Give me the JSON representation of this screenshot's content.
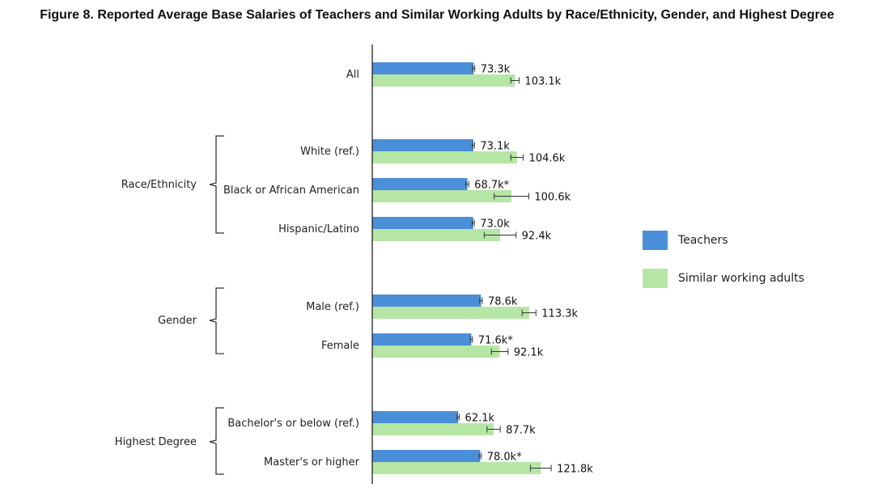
{
  "title": "Figure 8. Reported Average Base Salaries of Teachers and Similar Working Adults by Race/Ethnicity, Gender, and Highest Degree",
  "chart_data": {
    "type": "bar",
    "orientation": "horizontal",
    "title": "Figure 8. Reported Average Base Salaries of Teachers and Similar Working Adults by Race/Ethnicity, Gender, and Highest Degree",
    "xlabel": "",
    "ylabel": "",
    "xlim": [
      0,
      125
    ],
    "grid": false,
    "legend_position": "right",
    "categories": [
      "All",
      "White (ref.)",
      "Black or African American",
      "Hispanic/Latino",
      "Male (ref.)",
      "Female",
      "Bachelor's or below (ref.)",
      "Master's or higher"
    ],
    "groups": [
      {
        "label": "",
        "categories": [
          "All"
        ]
      },
      {
        "label": "Race/Ethnicity",
        "categories": [
          "White (ref.)",
          "Black or African American",
          "Hispanic/Latino"
        ]
      },
      {
        "label": "Gender",
        "categories": [
          "Male (ref.)",
          "Female"
        ]
      },
      {
        "label": "Highest Degree",
        "categories": [
          "Bachelor's or below (ref.)",
          "Master's or higher"
        ]
      }
    ],
    "series": [
      {
        "name": "Teachers",
        "color": "#4a8fd8",
        "values": [
          73.3,
          73.1,
          68.7,
          73.0,
          78.6,
          71.6,
          62.1,
          78.0
        ],
        "labels": [
          "73.3k",
          "73.1k",
          "68.7k*",
          "73.0k",
          "78.6k",
          "71.6k*",
          "62.1k",
          "78.0k*"
        ],
        "error": [
          0.8,
          0.8,
          1.0,
          0.8,
          0.9,
          0.8,
          0.8,
          0.8
        ]
      },
      {
        "name": "Similar working adults",
        "color": "#b6e6a6",
        "values": [
          103.1,
          104.6,
          100.6,
          92.4,
          113.3,
          92.1,
          87.7,
          121.8
        ],
        "labels": [
          "103.1k",
          "104.6k",
          "100.6k",
          "92.4k",
          "113.3k",
          "92.1k",
          "87.7k",
          "121.8k"
        ],
        "error": [
          3.0,
          4.5,
          12.5,
          11.5,
          5.0,
          6.0,
          4.8,
          7.5
        ]
      }
    ]
  }
}
